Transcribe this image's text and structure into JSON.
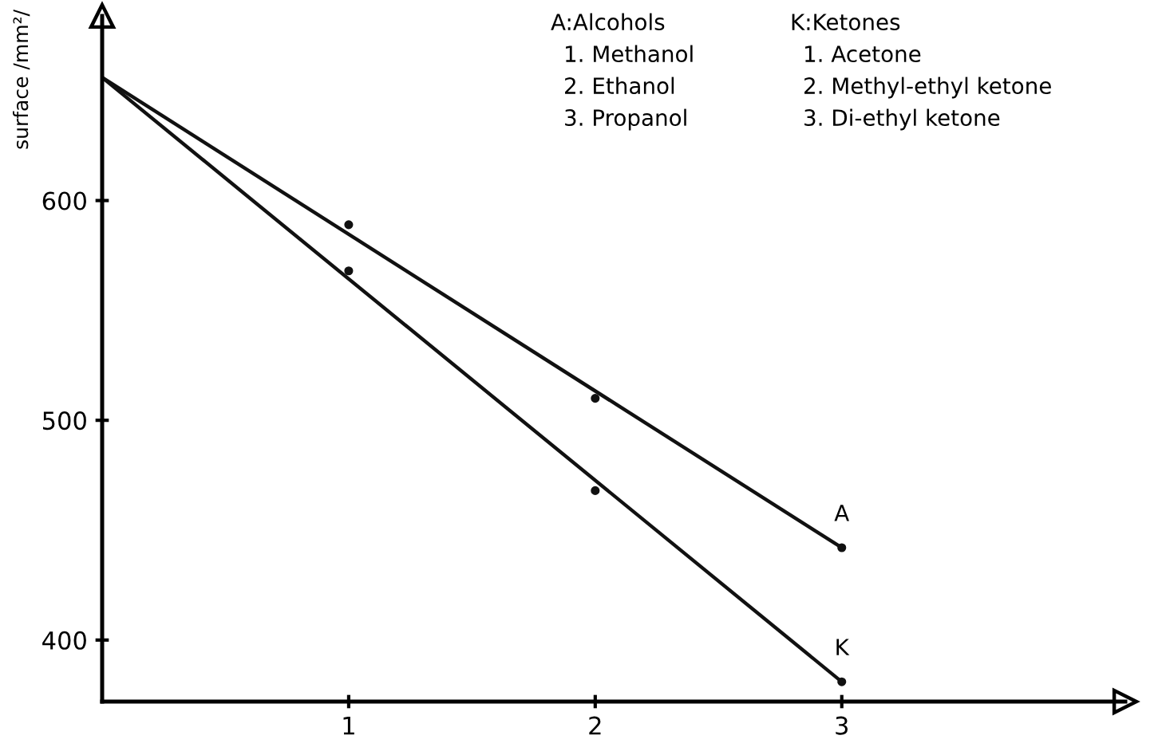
{
  "chart_data": {
    "type": "line",
    "ylabel": "surface /mm²/",
    "xlim": [
      0,
      4.15
    ],
    "ylim": [
      372,
      684
    ],
    "xticks": [
      1,
      2,
      3
    ],
    "yticks": [
      400,
      500,
      600
    ],
    "grid": false,
    "legend": false,
    "annotations": [
      "A:Alcohols",
      "1. Methanol",
      "2. Ethanol",
      "3. Propanol",
      "K:Ketones",
      "1. Acetone",
      "2. Methyl-ethyl ketone",
      "3. Di-ethyl ketone"
    ],
    "series": [
      {
        "name": "A",
        "color": "#111111",
        "x": [
          0,
          3
        ],
        "values": [
          656,
          442
        ],
        "marker": "none"
      },
      {
        "name": "K",
        "color": "#111111",
        "x": [
          0,
          3
        ],
        "values": [
          656,
          381
        ],
        "marker": "none"
      },
      {
        "type": "scatter",
        "color": "#111111",
        "x": [
          1,
          2,
          3
        ],
        "values": [
          589,
          510,
          442
        ],
        "marker": "circle"
      },
      {
        "type": "scatter",
        "color": "#111111",
        "x": [
          1,
          2,
          3
        ],
        "values": [
          568,
          468,
          381
        ],
        "marker": "circle"
      }
    ]
  }
}
